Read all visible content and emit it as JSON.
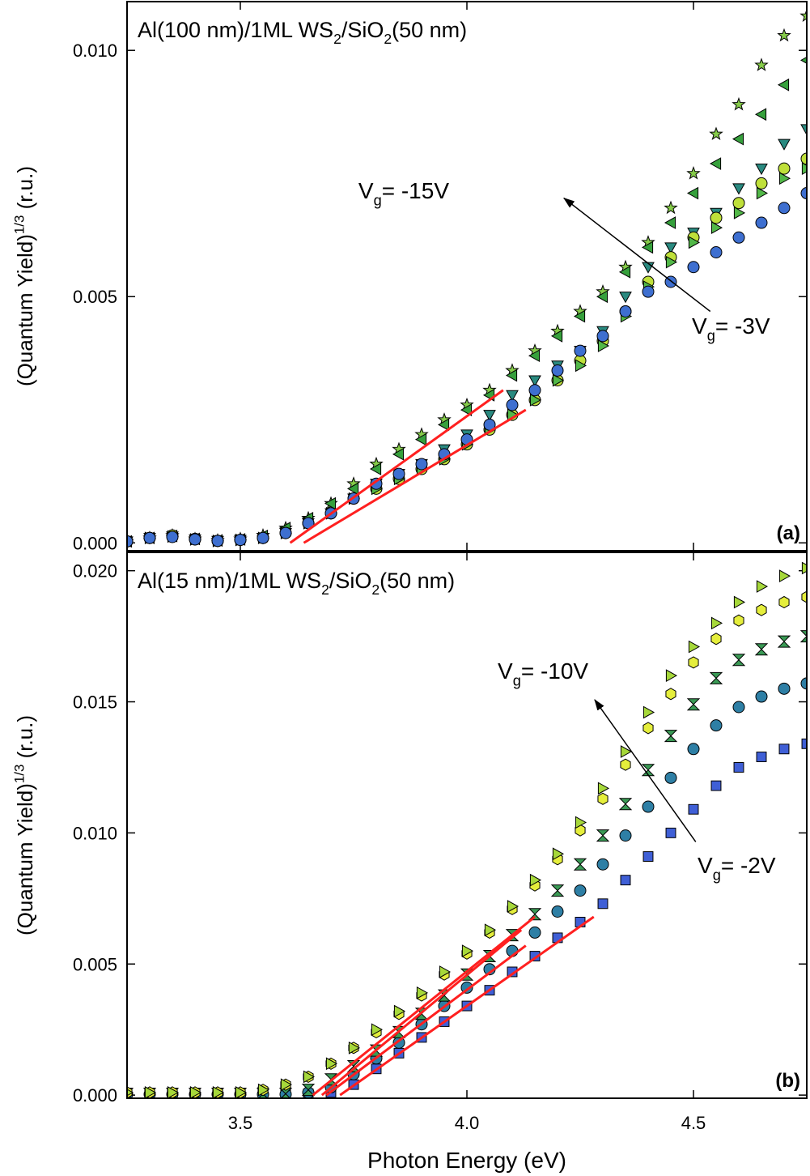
{
  "chart_data": [
    {
      "type": "scatter",
      "title": [
        {
          "text": "Al(100 nm)/1ML WS"
        },
        {
          "text": "2",
          "shift": "sub"
        },
        {
          "text": "/SiO"
        },
        {
          "text": "2",
          "shift": "sub"
        },
        {
          "text": "(50 nm)"
        }
      ],
      "y_label": [
        {
          "text": "(Quantum Yield)"
        },
        {
          "text": "1/3",
          "shift": "sup"
        },
        {
          "text": " (r.u.)"
        }
      ],
      "panel_label": "(a)",
      "xlim": [
        3.25,
        4.75
      ],
      "xticks": [
        3.5,
        4,
        4.5
      ],
      "show_xtick_labels": false,
      "ylim": [
        -0.00016,
        0.01099
      ],
      "yticks": [
        {
          "value": 0,
          "label": "0.000"
        },
        {
          "value": 0.005,
          "label": "0.005"
        },
        {
          "value": 0.01,
          "label": "0.010"
        }
      ],
      "x": [
        3.25,
        3.3,
        3.35,
        3.4,
        3.45,
        3.5,
        3.55,
        3.6,
        3.65,
        3.7,
        3.75,
        3.8,
        3.85,
        3.9,
        3.95,
        4.0,
        4.05,
        4.1,
        4.15,
        4.2,
        4.25,
        4.3,
        4.35,
        4.4,
        4.45,
        4.5,
        4.55,
        4.6,
        4.65,
        4.7,
        4.75
      ],
      "series": [
        {
          "marker": "star",
          "color": "#86cc4a",
          "values": [
            3e-05,
            0.0001,
            0.00015,
            8e-05,
            5e-05,
            8e-05,
            0.00015,
            0.0003,
            0.0005,
            0.0008,
            0.0012,
            0.0016,
            0.0019,
            0.0022,
            0.0025,
            0.0028,
            0.0031,
            0.0035,
            0.0039,
            0.0043,
            0.0047,
            0.0051,
            0.0056,
            0.0061,
            0.0068,
            0.0075,
            0.0083,
            0.0089,
            0.0097,
            0.0103,
            0.0107
          ]
        },
        {
          "marker": "triangle-left",
          "color": "#36a03c",
          "values": [
            3e-05,
            0.0001,
            0.00014,
            8e-05,
            5e-05,
            7e-05,
            0.00014,
            0.0003,
            0.0005,
            0.0008,
            0.0011,
            0.0015,
            0.0018,
            0.0021,
            0.0024,
            0.0027,
            0.003,
            0.0034,
            0.0038,
            0.0042,
            0.0046,
            0.005,
            0.0055,
            0.006,
            0.0065,
            0.0071,
            0.0077,
            0.0082,
            0.0087,
            0.0093,
            0.0098
          ]
        },
        {
          "marker": "triangle-down",
          "color": "#2a8a80",
          "values": [
            3e-05,
            0.0001,
            0.00013,
            7e-05,
            4e-05,
            6e-05,
            0.0001,
            0.0002,
            0.0004,
            0.0006,
            0.0009,
            0.0012,
            0.0014,
            0.0016,
            0.0019,
            0.0022,
            0.0026,
            0.003,
            0.0033,
            0.0036,
            0.0039,
            0.0043,
            0.005,
            0.0056,
            0.006,
            0.0063,
            0.0067,
            0.0072,
            0.0076,
            0.0081,
            0.0084
          ]
        },
        {
          "marker": "circle",
          "color": "#bfe03a",
          "values": [
            3e-05,
            0.0001,
            0.00015,
            8e-05,
            4e-05,
            6e-05,
            0.0001,
            0.0002,
            0.0004,
            0.0006,
            0.0009,
            0.0011,
            0.0013,
            0.0015,
            0.0017,
            0.002,
            0.0023,
            0.0026,
            0.0029,
            0.0033,
            0.0037,
            0.0041,
            0.0047,
            0.0053,
            0.0058,
            0.0062,
            0.0066,
            0.0069,
            0.0073,
            0.0076,
            0.0078
          ]
        },
        {
          "marker": "triangle-right",
          "color": "#52b848",
          "values": [
            3e-05,
            0.0001,
            0.00013,
            7e-05,
            4e-05,
            6e-05,
            0.0001,
            0.0002,
            0.0004,
            0.0006,
            0.0009,
            0.0011,
            0.0013,
            0.0015,
            0.0017,
            0.002,
            0.0023,
            0.0026,
            0.0029,
            0.0033,
            0.0036,
            0.004,
            0.0046,
            0.0052,
            0.0057,
            0.0061,
            0.0064,
            0.0067,
            0.0071,
            0.0074,
            0.0076
          ]
        },
        {
          "marker": "circle",
          "color": "#3e6fd0",
          "values": [
            3e-05,
            0.0001,
            0.00012,
            7e-05,
            4e-05,
            6e-05,
            0.0001,
            0.0002,
            0.0004,
            0.0006,
            0.0009,
            0.0012,
            0.0014,
            0.0016,
            0.0018,
            0.0021,
            0.0024,
            0.0028,
            0.0031,
            0.0035,
            0.0039,
            0.0042,
            0.0047,
            0.0051,
            0.0053,
            0.0056,
            0.0059,
            0.0062,
            0.0065,
            0.0068,
            0.0071
          ]
        }
      ],
      "fit_color": "#ff2020",
      "fit_lines": [
        {
          "x": [
            3.61,
            4.08
          ],
          "y": [
            0,
            0.0031
          ]
        },
        {
          "x": [
            3.64,
            4.13
          ],
          "y": [
            0,
            0.0027
          ]
        }
      ],
      "arrow": {
        "x": [
          4.537,
          4.214
        ],
        "y": [
          0.0047,
          0.007
        ]
      },
      "annotations": [
        [
          {
            "text": "V"
          },
          {
            "text": "g",
            "shift": "sub"
          },
          {
            "text": "= -15V"
          }
        ],
        [
          {
            "text": "V"
          },
          {
            "text": "g",
            "shift": "sub"
          },
          {
            "text": "= -3V"
          }
        ]
      ]
    },
    {
      "type": "scatter",
      "title": [
        {
          "text": "Al(15 nm)/1ML WS"
        },
        {
          "text": "2",
          "shift": "sub"
        },
        {
          "text": "/SiO"
        },
        {
          "text": "2",
          "shift": "sub"
        },
        {
          "text": "(50 nm)"
        }
      ],
      "y_label": [
        {
          "text": "(Quantum Yield)"
        },
        {
          "text": "1/3",
          "shift": "sup"
        },
        {
          "text": " (r.u.)"
        }
      ],
      "x_label": "Photon Energy (eV)",
      "panel_label": "(b)",
      "xlim": [
        3.25,
        4.75
      ],
      "xticks": [
        3.5,
        {
          "value": 4,
          "label": "4.0"
        },
        4.5
      ],
      "show_xtick_labels": true,
      "ylim": [
        -0.00012,
        0.0207
      ],
      "yticks": [
        {
          "value": 0,
          "label": "0.000"
        },
        {
          "value": 0.005,
          "label": "0.005"
        },
        {
          "value": 0.01,
          "label": "0.010"
        },
        {
          "value": 0.015,
          "label": "0.015"
        },
        {
          "value": 0.02,
          "label": "0.020"
        }
      ],
      "x": [
        3.25,
        3.3,
        3.35,
        3.4,
        3.45,
        3.5,
        3.55,
        3.6,
        3.65,
        3.7,
        3.75,
        3.8,
        3.85,
        3.9,
        3.95,
        4.0,
        4.05,
        4.1,
        4.15,
        4.2,
        4.25,
        4.3,
        4.35,
        4.4,
        4.45,
        4.5,
        4.55,
        4.6,
        4.65,
        4.7,
        4.75
      ],
      "series": [
        {
          "marker": "square",
          "color": "#3f5fd6",
          "values": [
            3e-05,
            3e-05,
            3e-05,
            3e-05,
            3e-05,
            3e-05,
            3e-05,
            3e-05,
            5e-05,
            0.0001,
            0.0004,
            0.001,
            0.0016,
            0.0022,
            0.0028,
            0.0034,
            0.004,
            0.0047,
            0.0053,
            0.006,
            0.0066,
            0.0073,
            0.0082,
            0.0091,
            0.01,
            0.0109,
            0.0118,
            0.0125,
            0.0129,
            0.0132,
            0.0134
          ]
        },
        {
          "marker": "circle",
          "color": "#2e7fa5",
          "values": [
            3e-05,
            3e-05,
            3e-05,
            3e-05,
            3e-05,
            3e-05,
            3e-05,
            3e-05,
            0.0001,
            0.0003,
            0.0008,
            0.0014,
            0.002,
            0.0027,
            0.0034,
            0.0041,
            0.0048,
            0.0055,
            0.0062,
            0.007,
            0.0078,
            0.0088,
            0.0099,
            0.011,
            0.0121,
            0.0132,
            0.0141,
            0.0148,
            0.0152,
            0.0155,
            0.0157
          ]
        },
        {
          "marker": "bowtie",
          "color": "#3a9a55",
          "values": [
            5e-05,
            5e-05,
            5e-05,
            5e-05,
            5e-05,
            5e-05,
            5e-05,
            5e-05,
            0.0002,
            0.0006,
            0.0011,
            0.0017,
            0.0024,
            0.0031,
            0.0038,
            0.0046,
            0.0053,
            0.0061,
            0.0069,
            0.0078,
            0.0088,
            0.0099,
            0.0111,
            0.0124,
            0.0137,
            0.0149,
            0.0159,
            0.0166,
            0.017,
            0.0173,
            0.0175
          ]
        },
        {
          "marker": "hexagon",
          "color": "#e5ee3c",
          "values": [
            0.0001,
            0.0001,
            0.0001,
            0.0001,
            0.0001,
            0.0001,
            0.0002,
            0.0004,
            0.0007,
            0.0012,
            0.0018,
            0.0024,
            0.0031,
            0.0038,
            0.0046,
            0.0054,
            0.0062,
            0.0071,
            0.008,
            0.009,
            0.0101,
            0.0113,
            0.0126,
            0.014,
            0.0153,
            0.0165,
            0.0174,
            0.0181,
            0.0185,
            0.0188,
            0.019
          ]
        },
        {
          "marker": "triangle-right",
          "color": "#a6d83a",
          "values": [
            0.0001,
            0.0001,
            0.0001,
            0.0001,
            0.0001,
            0.0001,
            0.0002,
            0.0004,
            0.0007,
            0.0012,
            0.0018,
            0.0025,
            0.0032,
            0.0039,
            0.0047,
            0.0055,
            0.0063,
            0.0072,
            0.0082,
            0.0092,
            0.0104,
            0.0117,
            0.0131,
            0.0146,
            0.016,
            0.0171,
            0.018,
            0.0188,
            0.0194,
            0.0198,
            0.0201
          ]
        }
      ],
      "fit_color": "#ff2020",
      "fit_lines": [
        {
          "x": [
            3.66,
            4.15
          ],
          "y": [
            0,
            0.0068
          ]
        },
        {
          "x": [
            3.68,
            4.12
          ],
          "y": [
            0,
            0.0063
          ]
        },
        {
          "x": [
            3.69,
            4.13
          ],
          "y": [
            0,
            0.0057
          ]
        },
        {
          "x": [
            3.72,
            4.28
          ],
          "y": [
            0,
            0.0068
          ]
        }
      ],
      "arrow": {
        "x": [
          4.505,
          4.282
        ],
        "y": [
          0.00966,
          0.01508
        ]
      },
      "annotations": [
        [
          {
            "text": "V"
          },
          {
            "text": "g",
            "shift": "sub"
          },
          {
            "text": "= -10V"
          }
        ],
        [
          {
            "text": "V"
          },
          {
            "text": "g",
            "shift": "sub"
          },
          {
            "text": "= -2V"
          }
        ]
      ]
    }
  ]
}
